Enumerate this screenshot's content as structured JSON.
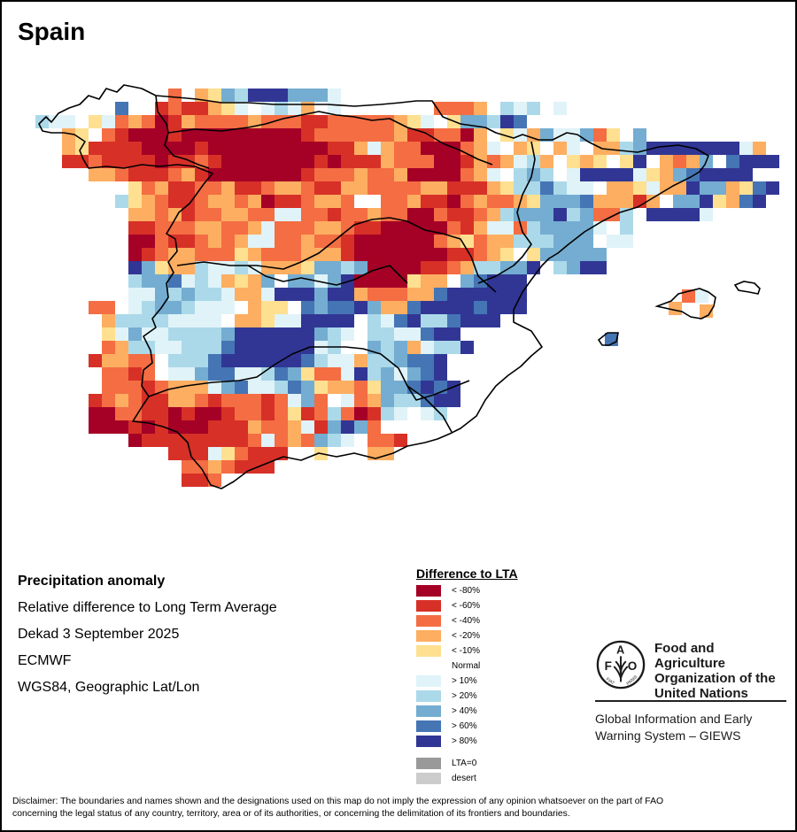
{
  "title": "Spain",
  "info": {
    "heading": "Precipitation anomaly",
    "line1": "Relative difference to Long Term Average",
    "line2": "Dekad 3 September 2025",
    "line3": "ECMWF",
    "line4": "WGS84, Geographic Lat/Lon"
  },
  "legend": {
    "title": "Difference to LTA",
    "classes": [
      {
        "code": "A",
        "label": "< -80%",
        "color": "#a50026"
      },
      {
        "code": "B",
        "label": "< -60%",
        "color": "#d73027"
      },
      {
        "code": "C",
        "label": "< -40%",
        "color": "#f46d43"
      },
      {
        "code": "D",
        "label": "< -20%",
        "color": "#fdae61"
      },
      {
        "code": "E",
        "label": "< -10%",
        "color": "#fee090"
      },
      {
        "code": ".",
        "label": "Normal",
        "color": "#ffffff"
      },
      {
        "code": "F",
        "label": "> 10%",
        "color": "#e0f3f8"
      },
      {
        "code": "G",
        "label": "> 20%",
        "color": "#abd9e9"
      },
      {
        "code": "H",
        "label": "> 40%",
        "color": "#74add1"
      },
      {
        "code": "I",
        "label": "> 60%",
        "color": "#4575b4"
      },
      {
        "code": "J",
        "label": "> 80%",
        "color": "#313695"
      }
    ],
    "extra": [
      {
        "label": "LTA=0",
        "color": "#999999"
      },
      {
        "label": "desert",
        "color": "#cccccc"
      }
    ]
  },
  "org": {
    "name_line1": "Food and Agriculture",
    "name_line2": "Organization of the",
    "name_line3": "United Nations",
    "sub_line1": "Global Information and Early",
    "sub_line2": "Warning System – GIEWS",
    "logo_letters": "FAO",
    "logo_motto": "FIAT PANIS"
  },
  "disclaimer": {
    "line1": "Disclaimer: The boundaries and names shown and the designations used on this map do not imply the expression of any opinion whatsoever on the part of FAO",
    "line2": "concerning the legal status of any country, territory, area or of its authorities, or concerning the delimitation of its frontiers and boundaries."
  },
  "map_grid": {
    "resolution_note": "class codes per grid cell, west to east, north to south",
    "rows": [
      "          C DEHGJJJHHHF                                  ",
      "      I .BCBBDEF.FGFD.F       CCCD.GFG.F                ",
      "GFF EFCDCABDCCCCDCCCBBCCCCCDEF.EHHGJI.                  ",
      "  DE.CBAAABAAAAAAAAABCCCCCCDBBCCAD.EFDHFFHCE.H            ",
      "  DEBBBBAAAABAAAAAAAAABBDFDCCAAACDF.DE.DF.DDGHJJJJJJJFD.DEHJ",
      "  BBCBBBBABBCBAAAAAAABABBBDCCCAABDCDFGD.EDE.EJ.DCDH.IJJJJ",
      "    DDCBBBCDBAAAAAAABCCCDCCDAAAACDF.GHG.FJJJJFEDHIJJJJ",
      "       ECDBBCCDBBCDDCBBDDCCCCDDBBBDEGGIGFF.DDEFDDJHHDEIJJ",
      "      GEDCBBCDDCDABBCDDC..CCDBBACDCCDEHHHIDDDBD HHJEDIJ ",
      "       DDCDBCCDDCCFFCCBCCDCCAACBBCDGHHHJGHCCG JJJJF      ",
      "       BBCCCDDCCDFCCCDDCBBAAAAACBDFFCGHHHHF G  ",
      "       AACBBCDCDFFCCDCCBAAAAAACDECDDGGGHHH.FF.  ",
      "       ABCDDCCCEDCCCDDDBAAAAAAABBCDE.EHHHHH   ",
      "       JHEDDGFFGFDDDEHHGHAAAABBCDGGHHJ.GHJJ    ",
      "      .GHHIFGFDEDH.HHFHJAAAAEDD.HIJJJ       ",
      "       FFHGHGGFDDFJJJHJJDCCCDDIJJJJJJ       ",
      "    CC FGHHGFFF.DEE.IHIIJHDDIJJJJIJJJ         ",
      "     DGGGGFFFF.DDEFFJJJJ.GFIJGGIJJJ     ",
      "     EFHFFGGGGHJJJJJJHGF.GGFFIJJ        ",
      "     CDGGFFGGGIJJJJJJFG..HGHDFGGJ      ",
      "    BDDCC.GGGIJJJJJJIGFFDGGHIIJ       ",
      "     CCBC.FFHIIFFGIHECCFJGHFHIJ        ",
      "     CCCBCDDDFHIFFGIHEDDCEHHIJIJ        ",
      "    BCDCBBDDCBCCCBCFHC.FCDHGGIJJ       ",
      "    AACCBBABAABCCBCEBCGCABGF.FG        ",
      "    AAABABAAABBBDCCDFBHJHC          ",
      "       ABBBBBBBBCFCDCHGF.CCB            ",
      "          BBBFECBBB  E   DD             ",
      "           CCDCBBB                      ",
      "           BBC                          "
    ]
  }
}
